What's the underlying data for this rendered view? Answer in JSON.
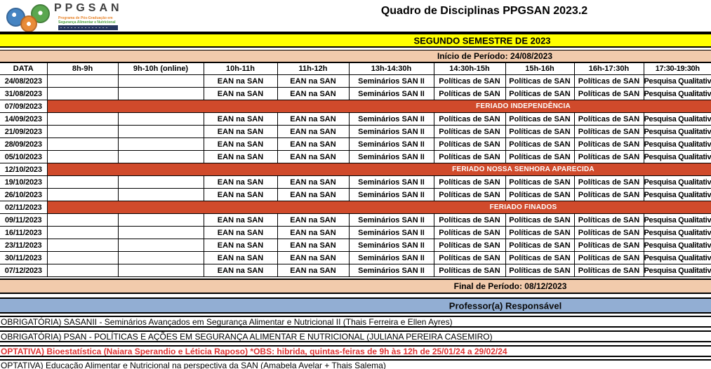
{
  "logo": {
    "acronym": "PPGSAN",
    "subtitle_line1": "Programa de Pós-Graduação em",
    "subtitle_line2": "Segurança Alimentar e Nutricional"
  },
  "title": "Quadro de Disciplinas PPGSAN 2023.2",
  "banners": {
    "semester": "SEGUNDO SEMESTRE DE 2023",
    "period_start": "Início de Período: 24/08/2023",
    "period_end": "Final de Período: 08/12/2023",
    "professor_header": "Professor(a) Responsável"
  },
  "schedule": {
    "columns": [
      "DATA",
      "8h-9h",
      "9h-10h (online)",
      "10h-11h",
      "11h-12h",
      "13h-14:30h",
      "14:30h-15h",
      "15h-16h",
      "16h-17:30h",
      "17:30-19:30h"
    ],
    "regular_cells": [
      "",
      "",
      "EAN na SAN",
      "EAN na SAN",
      "Seminários SAN II",
      "Políticas de SAN",
      "Políticas de SAN",
      "Políticas de SAN",
      "Pesquisa Qualitativa"
    ],
    "rows": [
      {
        "date": "24/08/2023",
        "type": "regular"
      },
      {
        "date": "31/08/2023",
        "type": "regular"
      },
      {
        "date": "07/09/2023",
        "type": "holiday",
        "holiday": "FERIADO INDEPENDÊNCIA"
      },
      {
        "date": "14/09/2023",
        "type": "regular"
      },
      {
        "date": "21/09/2023",
        "type": "regular"
      },
      {
        "date": "28/09/2023",
        "type": "regular"
      },
      {
        "date": "05/10/2023",
        "type": "regular"
      },
      {
        "date": "12/10/2023",
        "type": "holiday",
        "holiday": "FERIADO NOSSA SENHORA APARECIDA"
      },
      {
        "date": "19/10/2023",
        "type": "regular"
      },
      {
        "date": "26/10/2023",
        "type": "regular"
      },
      {
        "date": "02/11/2023",
        "type": "holiday",
        "holiday": "FERIADO FINADOS"
      },
      {
        "date": "09/11/2023",
        "type": "regular"
      },
      {
        "date": "16/11/2023",
        "type": "regular"
      },
      {
        "date": "23/11/2023",
        "type": "regular"
      },
      {
        "date": "30/11/2023",
        "type": "regular"
      },
      {
        "date": "07/12/2023",
        "type": "regular"
      }
    ]
  },
  "legend": [
    {
      "text": "OBRIGATÓRIA) SASANII - Seminários Avançados em Segurança Alimentar e Nutricional II (Thais Ferreira e Ellen Ayres)",
      "highlight": false
    },
    {
      "text": "OBRIGATÓRIA) PSAN - POLÍTICAS E AÇÕES EM SEGURANÇA ALIMENTAR E NUTRICIONAL (JULIANA PEREIRA CASEMIRO)",
      "highlight": false
    },
    {
      "text": "OPTATIVA) Bioestatística (Naiara Sperandio e Léticia Raposo) *OBS: hibrida, quintas-feiras de 9h às 12h de 25/01/24 a 29/02/24",
      "highlight": true
    },
    {
      "text": "OPTATIVA) Educação Alimentar e Nutricional na perspectiva da SAN (Amabela Avelar + Thais Salema)",
      "highlight": false
    }
  ],
  "colors": {
    "semester_banner_bg": "#FFFF00",
    "period_banner_bg": "#F2CBAC",
    "holiday_bg": "#D04A2B",
    "professor_banner_bg": "#92AED3",
    "legend_highlight_text": "#E03434",
    "logo_blue": "#3C7EBF",
    "logo_green": "#52A346",
    "logo_orange": "#E8862E",
    "logo_bar": "#26365E"
  }
}
